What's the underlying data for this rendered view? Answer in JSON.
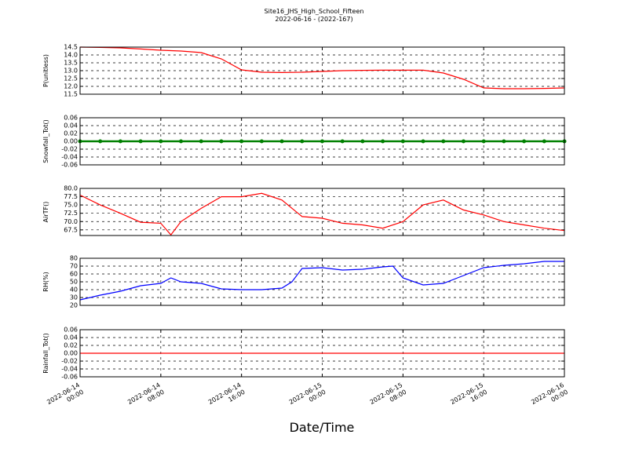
{
  "title": "Site16_JHS_High_School_Fifteen",
  "subtitle": "2022-06-16 - (2022-167)",
  "xlabel": "Date/Time",
  "xlim": [
    "2022-06-14 00:00",
    "2022-06-16 00:00"
  ],
  "xticks": [
    "2022-06-14 00:00",
    "2022-06-14 08:00",
    "2022-06-14 16:00",
    "2022-06-15 00:00",
    "2022-06-15 08:00",
    "2022-06-15 16:00",
    "2022-06-16 00:00"
  ],
  "grid": true,
  "chart_data": [
    {
      "type": "line",
      "ylabel": "P(unitless)",
      "color": "#ff0000",
      "x": [
        "2022-06-14 00:00",
        "2022-06-14 02:00",
        "2022-06-14 04:00",
        "2022-06-14 06:00",
        "2022-06-14 08:00",
        "2022-06-14 10:00",
        "2022-06-14 12:00",
        "2022-06-14 14:00",
        "2022-06-14 16:00",
        "2022-06-14 18:00",
        "2022-06-14 20:00",
        "2022-06-14 22:00",
        "2022-06-15 00:00",
        "2022-06-15 02:00",
        "2022-06-15 04:00",
        "2022-06-15 06:00",
        "2022-06-15 08:00",
        "2022-06-15 10:00",
        "2022-06-15 12:00",
        "2022-06-15 14:00",
        "2022-06-15 16:00",
        "2022-06-15 18:00",
        "2022-06-15 20:00",
        "2022-06-15 22:00",
        "2022-06-16 00:00"
      ],
      "values": [
        14.5,
        14.48,
        14.45,
        14.38,
        14.3,
        14.25,
        14.15,
        13.75,
        13.05,
        12.9,
        12.88,
        12.9,
        12.95,
        13.0,
        13.02,
        13.03,
        13.03,
        13.03,
        12.85,
        12.45,
        11.9,
        11.85,
        11.85,
        11.87,
        11.9
      ],
      "ylim": [
        11.5,
        14.5
      ],
      "yticks": [
        {
          "value": 11.5,
          "label": "11.5"
        },
        {
          "value": 12,
          "label": "12.0"
        },
        {
          "value": 12.5,
          "label": "12.5"
        },
        {
          "value": 13,
          "label": "13.0"
        },
        {
          "value": 13.5,
          "label": "13.5"
        },
        {
          "value": 14,
          "label": "14.0"
        },
        {
          "value": 14.5,
          "label": "14.5"
        }
      ]
    },
    {
      "type": "scatter",
      "ylabel": "Snowfall_Tot()",
      "color": "#008000",
      "x": [
        "2022-06-14 00:00",
        "2022-06-14 02:00",
        "2022-06-14 04:00",
        "2022-06-14 06:00",
        "2022-06-14 08:00",
        "2022-06-14 10:00",
        "2022-06-14 12:00",
        "2022-06-14 14:00",
        "2022-06-14 16:00",
        "2022-06-14 18:00",
        "2022-06-14 20:00",
        "2022-06-14 22:00",
        "2022-06-15 00:00",
        "2022-06-15 02:00",
        "2022-06-15 04:00",
        "2022-06-15 06:00",
        "2022-06-15 08:00",
        "2022-06-15 10:00",
        "2022-06-15 12:00",
        "2022-06-15 14:00",
        "2022-06-15 16:00",
        "2022-06-15 18:00",
        "2022-06-15 20:00",
        "2022-06-15 22:00",
        "2022-06-16 00:00"
      ],
      "values": [
        0,
        0,
        0,
        0,
        0,
        0,
        0,
        0,
        0,
        0,
        0,
        0,
        0,
        0,
        0,
        0,
        0,
        0,
        0,
        0,
        0,
        0,
        0,
        0,
        0
      ],
      "ylim": [
        -0.06,
        0.06
      ],
      "yticks": [
        -0.06,
        -0.04,
        -0.02,
        {
          "value": 0,
          "label": "0.00"
        },
        0.02,
        0.04,
        0.06
      ]
    },
    {
      "type": "line",
      "ylabel": "AirTF()",
      "color": "#ff0000",
      "x": [
        "2022-06-14 00:00",
        "2022-06-14 02:00",
        "2022-06-14 04:00",
        "2022-06-14 06:00",
        "2022-06-14 08:00",
        "2022-06-14 09:00",
        "2022-06-14 10:00",
        "2022-06-14 12:00",
        "2022-06-14 14:00",
        "2022-06-14 16:00",
        "2022-06-14 18:00",
        "2022-06-14 20:00",
        "2022-06-14 22:00",
        "2022-06-15 00:00",
        "2022-06-15 02:00",
        "2022-06-15 04:00",
        "2022-06-15 06:00",
        "2022-06-15 08:00",
        "2022-06-15 10:00",
        "2022-06-15 12:00",
        "2022-06-15 14:00",
        "2022-06-15 16:00",
        "2022-06-15 18:00",
        "2022-06-15 20:00",
        "2022-06-15 22:00",
        "2022-06-16 00:00"
      ],
      "values": [
        78,
        75,
        72.5,
        69.8,
        69.5,
        66,
        70,
        74,
        77.5,
        77.5,
        78.5,
        76.5,
        71.5,
        71,
        69.5,
        69,
        68,
        70,
        75,
        76.5,
        73.5,
        72,
        70,
        69,
        68,
        67.3
      ],
      "ylim": [
        65.8,
        80
      ],
      "yticks": [
        67.5,
        {
          "value": 70,
          "label": "70.0"
        },
        72.5,
        {
          "value": 75,
          "label": "75.0"
        },
        77.5,
        {
          "value": 80,
          "label": "80.0"
        }
      ]
    },
    {
      "type": "line",
      "ylabel": "RH(%)",
      "color": "#0000ff",
      "x": [
        "2022-06-14 00:00",
        "2022-06-14 02:00",
        "2022-06-14 04:00",
        "2022-06-14 06:00",
        "2022-06-14 08:00",
        "2022-06-14 09:00",
        "2022-06-14 10:00",
        "2022-06-14 12:00",
        "2022-06-14 14:00",
        "2022-06-14 16:00",
        "2022-06-14 18:00",
        "2022-06-14 20:00",
        "2022-06-14 21:00",
        "2022-06-14 22:00",
        "2022-06-15 00:00",
        "2022-06-15 02:00",
        "2022-06-15 04:00",
        "2022-06-15 06:00",
        "2022-06-15 07:00",
        "2022-06-15 08:00",
        "2022-06-15 10:00",
        "2022-06-15 12:00",
        "2022-06-15 14:00",
        "2022-06-15 16:00",
        "2022-06-15 18:00",
        "2022-06-15 20:00",
        "2022-06-15 22:00",
        "2022-06-16 00:00"
      ],
      "values": [
        27,
        33,
        38,
        45,
        48,
        55,
        50,
        48,
        41,
        40,
        40,
        42,
        50,
        67,
        68,
        65,
        66,
        69,
        70,
        55,
        46,
        48,
        58,
        68,
        71,
        73,
        76,
        76
      ],
      "ylim": [
        20,
        80
      ],
      "yticks": [
        20,
        30,
        40,
        50,
        60,
        70,
        80
      ]
    },
    {
      "type": "line",
      "ylabel": "Rainfall_Tot()",
      "color": "#ff0000",
      "x": [
        "2022-06-14 00:00",
        "2022-06-14 02:00",
        "2022-06-14 04:00",
        "2022-06-14 06:00",
        "2022-06-14 08:00",
        "2022-06-14 10:00",
        "2022-06-14 12:00",
        "2022-06-14 14:00",
        "2022-06-14 16:00",
        "2022-06-14 18:00",
        "2022-06-14 20:00",
        "2022-06-14 22:00",
        "2022-06-15 00:00",
        "2022-06-15 02:00",
        "2022-06-15 04:00",
        "2022-06-15 06:00",
        "2022-06-15 08:00",
        "2022-06-15 10:00",
        "2022-06-15 12:00",
        "2022-06-15 14:00",
        "2022-06-15 16:00",
        "2022-06-15 18:00",
        "2022-06-15 20:00",
        "2022-06-15 22:00",
        "2022-06-16 00:00"
      ],
      "values": [
        0,
        0,
        0,
        0,
        0,
        0,
        0,
        0,
        0,
        0,
        0,
        0,
        0,
        0,
        0,
        0,
        0,
        0,
        0,
        0,
        0,
        0,
        0,
        0,
        0
      ],
      "ylim": [
        -0.06,
        0.06
      ],
      "yticks": [
        -0.06,
        -0.04,
        -0.02,
        {
          "value": 0,
          "label": "0.00"
        },
        0.02,
        0.04,
        0.06
      ]
    }
  ]
}
